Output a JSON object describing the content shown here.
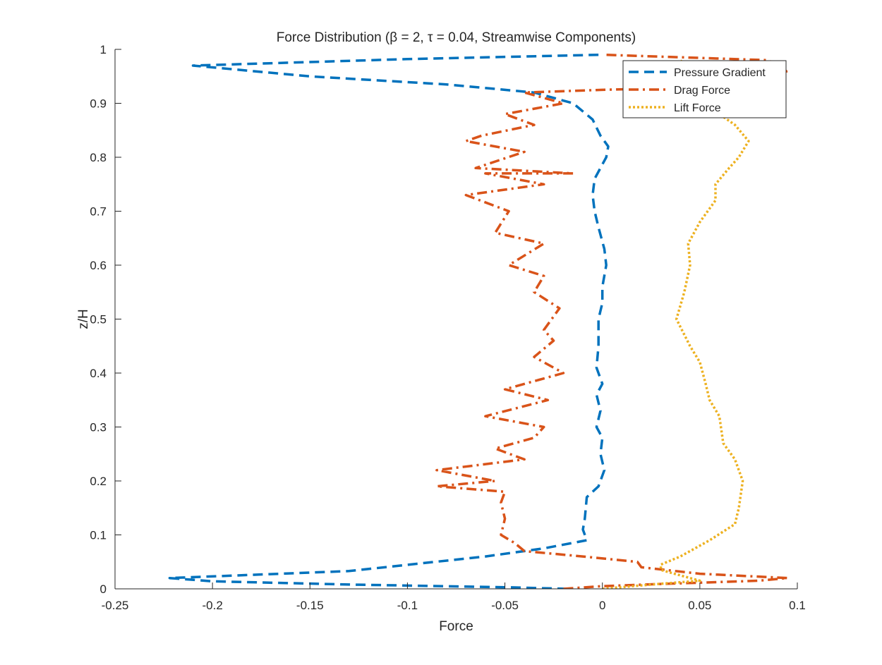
{
  "chart_data": {
    "type": "line",
    "title": "Force Distribution (β = 2, τ = 0.04, Streamwise Components)",
    "xlabel": "Force",
    "ylabel": "z/H",
    "xlim": [
      -0.25,
      0.1
    ],
    "ylim": [
      0,
      1
    ],
    "xticks": [
      -0.25,
      -0.2,
      -0.15,
      -0.1,
      -0.05,
      0,
      0.05,
      0.1
    ],
    "xtick_labels": [
      "-0.25",
      "-0.2",
      "-0.15",
      "-0.1",
      "-0.05",
      "0",
      "0.05",
      "0.1"
    ],
    "yticks": [
      0,
      0.1,
      0.2,
      0.3,
      0.4,
      0.5,
      0.6,
      0.7,
      0.8,
      0.9,
      1
    ],
    "ytick_labels": [
      "0",
      "0.1",
      "0.2",
      "0.3",
      "0.4",
      "0.5",
      "0.6",
      "0.7",
      "0.8",
      "0.9",
      "1"
    ],
    "grid": false,
    "legend_position": "top-right",
    "series": [
      {
        "name": "Pressure Gradient",
        "color": "#0072BD",
        "style": "dashed",
        "points": [
          [
            -0.018,
            0.0
          ],
          [
            -0.05,
            0.003
          ],
          [
            -0.13,
            0.008
          ],
          [
            -0.2,
            0.014
          ],
          [
            -0.222,
            0.02
          ],
          [
            -0.13,
            0.033
          ],
          [
            -0.06,
            0.06
          ],
          [
            -0.03,
            0.075
          ],
          [
            -0.008,
            0.09
          ],
          [
            -0.01,
            0.11
          ],
          [
            -0.009,
            0.13
          ],
          [
            -0.008,
            0.17
          ],
          [
            -0.002,
            0.19
          ],
          [
            0.001,
            0.22
          ],
          [
            -0.001,
            0.25
          ],
          [
            0.0,
            0.28
          ],
          [
            -0.003,
            0.3
          ],
          [
            -0.001,
            0.33
          ],
          [
            -0.003,
            0.36
          ],
          [
            0.0,
            0.38
          ],
          [
            -0.003,
            0.41
          ],
          [
            -0.002,
            0.45
          ],
          [
            -0.002,
            0.5
          ],
          [
            0.0,
            0.53
          ],
          [
            0.0,
            0.56
          ],
          [
            0.002,
            0.6
          ],
          [
            0.001,
            0.63
          ],
          [
            -0.002,
            0.67
          ],
          [
            -0.004,
            0.7
          ],
          [
            -0.005,
            0.73
          ],
          [
            -0.004,
            0.76
          ],
          [
            0.002,
            0.8
          ],
          [
            0.003,
            0.82
          ],
          [
            -0.001,
            0.84
          ],
          [
            -0.005,
            0.87
          ],
          [
            -0.015,
            0.9
          ],
          [
            -0.035,
            0.92
          ],
          [
            -0.08,
            0.935
          ],
          [
            -0.15,
            0.95
          ],
          [
            -0.21,
            0.97
          ],
          [
            -0.1,
            0.982
          ],
          [
            0.0,
            0.99
          ]
        ]
      },
      {
        "name": "Drag Force",
        "color": "#D95319",
        "style": "dashdot",
        "points": [
          [
            -0.02,
            0.0
          ],
          [
            0.0,
            0.005
          ],
          [
            0.03,
            0.009
          ],
          [
            0.08,
            0.015
          ],
          [
            0.095,
            0.02
          ],
          [
            0.05,
            0.028
          ],
          [
            0.02,
            0.04
          ],
          [
            0.018,
            0.05
          ],
          [
            -0.01,
            0.06
          ],
          [
            -0.04,
            0.07
          ],
          [
            -0.045,
            0.085
          ],
          [
            -0.052,
            0.1
          ],
          [
            -0.05,
            0.13
          ],
          [
            -0.052,
            0.16
          ],
          [
            -0.05,
            0.18
          ],
          [
            -0.085,
            0.19
          ],
          [
            -0.055,
            0.2
          ],
          [
            -0.085,
            0.22
          ],
          [
            -0.04,
            0.24
          ],
          [
            -0.055,
            0.26
          ],
          [
            -0.035,
            0.28
          ],
          [
            -0.03,
            0.3
          ],
          [
            -0.06,
            0.32
          ],
          [
            -0.028,
            0.35
          ],
          [
            -0.05,
            0.37
          ],
          [
            -0.02,
            0.4
          ],
          [
            -0.035,
            0.43
          ],
          [
            -0.025,
            0.46
          ],
          [
            -0.03,
            0.48
          ],
          [
            -0.022,
            0.52
          ],
          [
            -0.035,
            0.55
          ],
          [
            -0.03,
            0.58
          ],
          [
            -0.048,
            0.6
          ],
          [
            -0.03,
            0.64
          ],
          [
            -0.055,
            0.66
          ],
          [
            -0.048,
            0.7
          ],
          [
            -0.07,
            0.73
          ],
          [
            -0.03,
            0.75
          ],
          [
            -0.06,
            0.77
          ],
          [
            -0.015,
            0.77
          ],
          [
            -0.065,
            0.78
          ],
          [
            -0.04,
            0.81
          ],
          [
            -0.07,
            0.83
          ],
          [
            -0.062,
            0.84
          ],
          [
            -0.035,
            0.86
          ],
          [
            -0.05,
            0.88
          ],
          [
            -0.02,
            0.9
          ],
          [
            -0.04,
            0.92
          ],
          [
            0.0,
            0.925
          ],
          [
            0.05,
            0.93
          ],
          [
            0.08,
            0.94
          ],
          [
            0.095,
            0.96
          ],
          [
            0.085,
            0.98
          ],
          [
            0.0,
            0.99
          ]
        ]
      },
      {
        "name": "Lift Force",
        "color": "#EDB120",
        "style": "dotted",
        "points": [
          [
            0.0,
            0.0
          ],
          [
            0.025,
            0.008
          ],
          [
            0.05,
            0.015
          ],
          [
            0.04,
            0.025
          ],
          [
            0.03,
            0.035
          ],
          [
            0.03,
            0.045
          ],
          [
            0.04,
            0.06
          ],
          [
            0.055,
            0.09
          ],
          [
            0.068,
            0.12
          ],
          [
            0.07,
            0.15
          ],
          [
            0.072,
            0.2
          ],
          [
            0.068,
            0.24
          ],
          [
            0.062,
            0.27
          ],
          [
            0.06,
            0.32
          ],
          [
            0.055,
            0.35
          ],
          [
            0.053,
            0.38
          ],
          [
            0.05,
            0.42
          ],
          [
            0.045,
            0.45
          ],
          [
            0.038,
            0.5
          ],
          [
            0.042,
            0.55
          ],
          [
            0.045,
            0.6
          ],
          [
            0.044,
            0.64
          ],
          [
            0.05,
            0.68
          ],
          [
            0.058,
            0.72
          ],
          [
            0.058,
            0.75
          ],
          [
            0.065,
            0.78
          ],
          [
            0.07,
            0.8
          ],
          [
            0.075,
            0.83
          ],
          [
            0.068,
            0.86
          ],
          [
            0.06,
            0.88
          ],
          [
            0.055,
            0.9
          ],
          [
            0.05,
            0.93
          ],
          [
            0.045,
            0.96
          ],
          [
            0.04,
            0.98
          ]
        ]
      }
    ]
  }
}
